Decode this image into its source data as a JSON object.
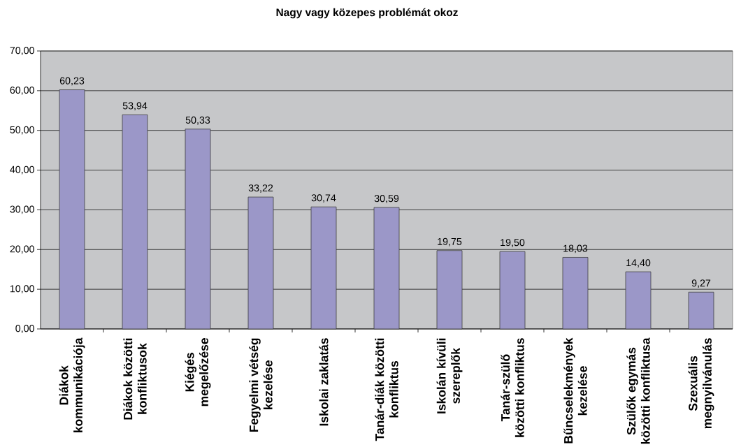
{
  "chart_data": {
    "type": "bar",
    "title": "Nagy vagy közepes problémát okoz",
    "categories": [
      "Diákok kommunikációja",
      "Diákok közötti konfliktusok",
      "Kiégés megelőzése",
      "Fegyelmi vétség kezelése",
      "Iskolai zaklatás",
      "Tanár-diák közötti konfliktus",
      "Iskolán kívüli szereplők",
      "Tanár-szülő közötti konfliktus",
      "Bűncselekmények kezelése",
      "Szülők egymás közötti konfliktusa",
      "Szexuális megnyilvánulás"
    ],
    "values": [
      60.23,
      53.94,
      50.33,
      33.22,
      30.74,
      30.59,
      19.75,
      19.5,
      18.03,
      14.4,
      9.27
    ],
    "value_labels": [
      "60,23",
      "53,94",
      "50,33",
      "33,22",
      "30,74",
      "30,59",
      "19,75",
      "19,50",
      "18,03",
      "14,40",
      "9,27"
    ],
    "color": "#9b97c8",
    "ylim": [
      0,
      70
    ],
    "yticks": [
      {
        "value": 0,
        "label": "0,00"
      },
      {
        "value": 10,
        "label": "10,00"
      },
      {
        "value": 20,
        "label": "20,00"
      },
      {
        "value": 30,
        "label": "30,00"
      },
      {
        "value": 40,
        "label": "40,00"
      },
      {
        "value": 50,
        "label": "50,00"
      },
      {
        "value": 60,
        "label": "60,00"
      },
      {
        "value": 70,
        "label": "70,00"
      }
    ],
    "grid": "y"
  }
}
